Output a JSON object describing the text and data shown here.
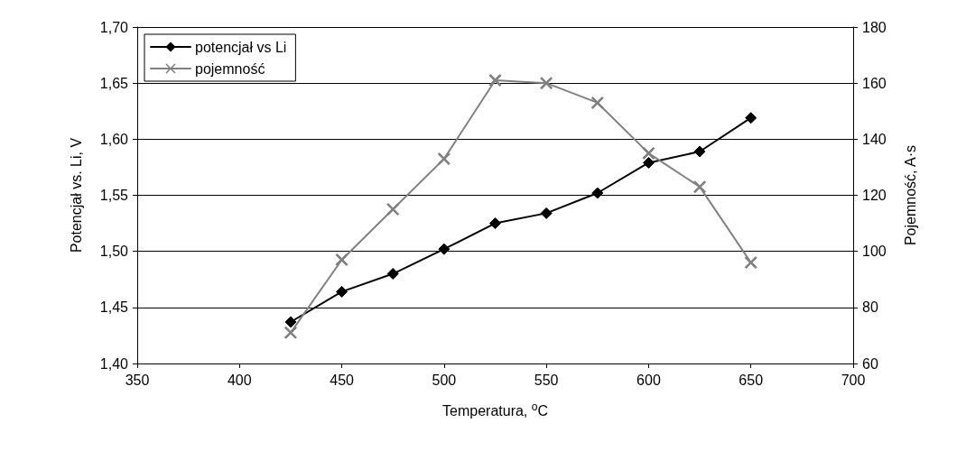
{
  "chart_data": {
    "type": "line",
    "xlabel": "Temperatura, $^{o}$C",
    "ylabel": "Potencjał vs. Li, V",
    "y2label": "Pojemność, A·s",
    "x": [
      425,
      450,
      475,
      500,
      525,
      550,
      575,
      600,
      625,
      650
    ],
    "series": [
      {
        "name": "potencjał vs Li",
        "color": "#000000",
        "marker": "diamond",
        "values": [
          1.437,
          1.464,
          1.48,
          1.502,
          1.525,
          1.534,
          1.552,
          1.579,
          1.589,
          1.619
        ]
      },
      {
        "name": "pojemność",
        "color": "#808080",
        "marker": "cross",
        "axis": "y2",
        "values": [
          71,
          97,
          115,
          133,
          161,
          160,
          153,
          135,
          123,
          96
        ]
      }
    ],
    "xlim": [
      350,
      700
    ],
    "xticks": [
      350,
      400,
      450,
      500,
      550,
      600,
      650,
      700
    ],
    "ylim": [
      1.4,
      1.7
    ],
    "yticks": [
      {
        "value": 1.4,
        "label": "1,40"
      },
      {
        "value": 1.45,
        "label": "1,45"
      },
      {
        "value": 1.5,
        "label": "1,50"
      },
      {
        "value": 1.55,
        "label": "1,55"
      },
      {
        "value": 1.6,
        "label": "1,60"
      },
      {
        "value": 1.65,
        "label": "1,65"
      },
      {
        "value": 1.7,
        "label": "1,70"
      }
    ],
    "y2lim": [
      60,
      180
    ],
    "y2ticks": [
      60,
      80,
      100,
      120,
      140,
      160,
      180
    ],
    "grid": "y",
    "legend": "top left",
    "line_style": "solid"
  }
}
